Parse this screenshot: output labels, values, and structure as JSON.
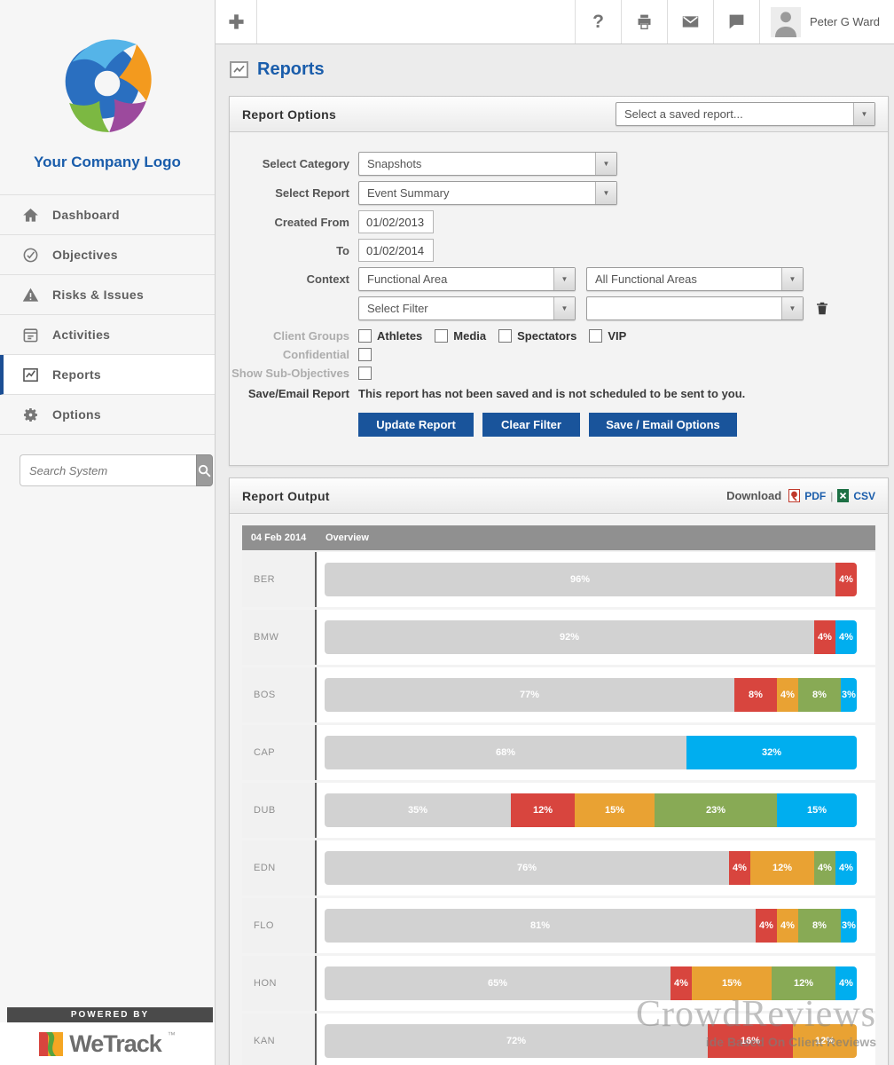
{
  "sidebar": {
    "logo_text": "Your Company Logo",
    "nav": [
      {
        "label": "Dashboard",
        "icon": "home-icon",
        "active": false
      },
      {
        "label": "Objectives",
        "icon": "check-circle-icon",
        "active": false
      },
      {
        "label": "Risks & Issues",
        "icon": "warning-icon",
        "active": false
      },
      {
        "label": "Activities",
        "icon": "calendar-icon",
        "active": false
      },
      {
        "label": "Reports",
        "icon": "chart-icon",
        "active": true
      },
      {
        "label": "Options",
        "icon": "gear-icon",
        "active": false
      }
    ],
    "search_placeholder": "Search System",
    "powered_by": "POWERED BY",
    "brand": "WeTrack",
    "brand_tm": "™"
  },
  "topbar": {
    "help_glyph": "?",
    "user_name": "Peter G Ward"
  },
  "page": {
    "title": "Reports"
  },
  "report_options": {
    "title": "Report Options",
    "saved_report_placeholder": "Select a saved report...",
    "fields": {
      "select_category_label": "Select Category",
      "select_category_value": "Snapshots",
      "select_report_label": "Select Report",
      "select_report_value": "Event Summary",
      "created_from_label": "Created From",
      "created_from_value": "01/02/2013",
      "to_label": "To",
      "to_value": "01/02/2014",
      "context_label": "Context",
      "context_value1": "Functional Area",
      "context_value2": "All Functional Areas",
      "filter_value": "Select Filter",
      "filter_value2": "",
      "client_groups_label": "Client Groups",
      "client_groups": [
        {
          "label": "Athletes",
          "checked": false
        },
        {
          "label": "Media",
          "checked": false
        },
        {
          "label": "Spectators",
          "checked": false
        },
        {
          "label": "VIP",
          "checked": false
        }
      ],
      "confidential_label": "Confidential",
      "confidential_checked": false,
      "show_sub_objectives_label": "Show Sub-Objectives",
      "show_sub_objectives_checked": false,
      "save_email_label": "Save/Email Report",
      "save_email_status": "This report has not been saved and is not scheduled to be sent to you."
    },
    "buttons": {
      "update": "Update Report",
      "clear": "Clear Filter",
      "save_email": "Save / Email Options"
    }
  },
  "report_output": {
    "title": "Report Output",
    "download_label": "Download",
    "pdf_label": "PDF",
    "separator": "|",
    "csv_label": "CSV"
  },
  "chart_data": {
    "type": "bar",
    "orientation": "horizontal-stacked",
    "header_date": "04 Feb 2014",
    "header_title": "Overview",
    "unit": "%",
    "categories": [
      "BER",
      "BMW",
      "BOS",
      "CAP",
      "DUB",
      "EDN",
      "FLO",
      "HON",
      "KAN"
    ],
    "series": [
      {
        "name": "grey",
        "color": "#d2d2d2",
        "values": [
          96,
          92,
          77,
          68,
          35,
          76,
          81,
          65,
          72
        ]
      },
      {
        "name": "red",
        "color": "#d8453e",
        "values": [
          4,
          4,
          8,
          0,
          12,
          4,
          4,
          4,
          16
        ]
      },
      {
        "name": "amber",
        "color": "#e9a233",
        "values": [
          0,
          0,
          4,
          0,
          15,
          12,
          4,
          15,
          12
        ]
      },
      {
        "name": "green",
        "color": "#88aa55",
        "values": [
          0,
          0,
          8,
          0,
          23,
          4,
          8,
          12,
          0
        ]
      },
      {
        "name": "blue",
        "color": "#00aeef",
        "values": [
          0,
          4,
          3,
          32,
          15,
          4,
          3,
          4,
          0
        ]
      }
    ],
    "xlim": [
      0,
      100
    ],
    "legend": "none",
    "grid": false
  },
  "watermark": {
    "title": "CrowdReviews",
    "subtitle": "ide Based On Client Reviews"
  }
}
